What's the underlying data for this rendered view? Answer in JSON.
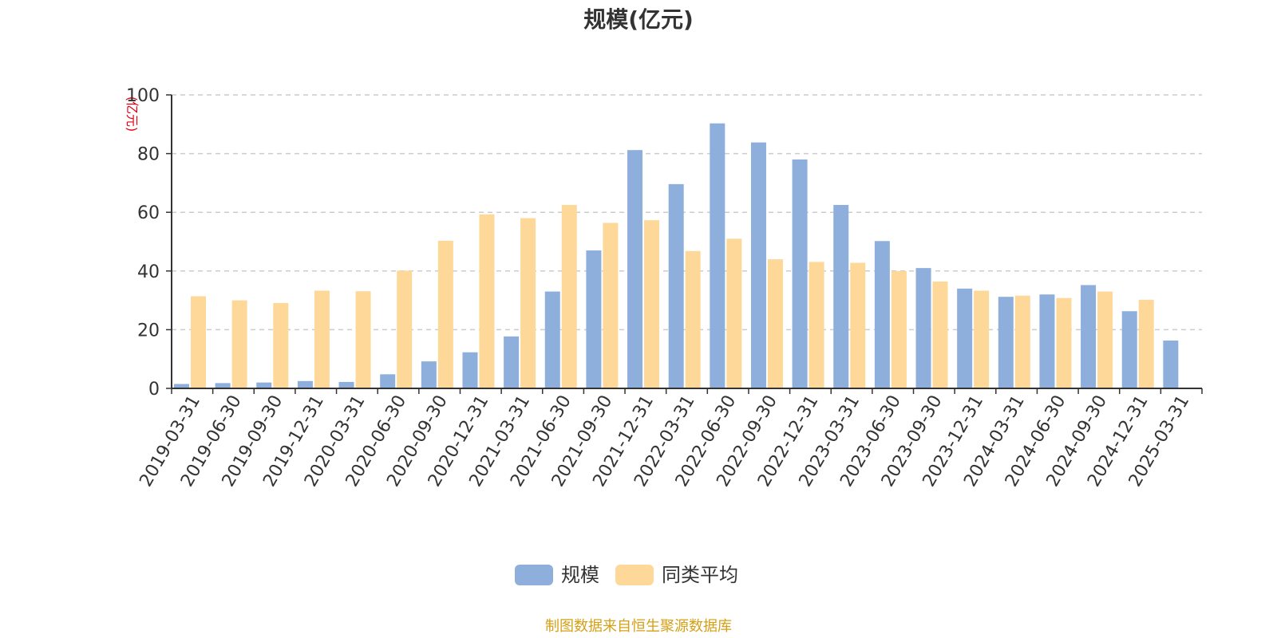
{
  "chart_data": {
    "type": "bar",
    "title": "规模(亿元)",
    "unit_label": "(亿元)",
    "ylim": [
      0,
      100
    ],
    "yticks": [
      0,
      20,
      40,
      60,
      80,
      100
    ],
    "grid": true,
    "legend_position": "bottom",
    "categories": [
      "2019-03-31",
      "2019-06-30",
      "2019-09-30",
      "2019-12-31",
      "2020-03-31",
      "2020-06-30",
      "2020-09-30",
      "2020-12-31",
      "2021-03-31",
      "2021-06-30",
      "2021-09-30",
      "2021-12-31",
      "2022-03-31",
      "2022-06-30",
      "2022-09-30",
      "2022-12-31",
      "2023-03-31",
      "2023-06-30",
      "2023-09-30",
      "2023-12-31",
      "2024-03-31",
      "2024-06-30",
      "2024-09-30",
      "2024-12-31",
      "2025-03-31"
    ],
    "series": [
      {
        "name": "规模",
        "color": "#8eaedb",
        "values": [
          1.5,
          1.8,
          2.0,
          2.5,
          2.2,
          4.8,
          9.2,
          12.3,
          17.7,
          33.0,
          47.0,
          81.2,
          69.6,
          90.3,
          83.8,
          78.0,
          62.5,
          50.2,
          41.0,
          34.0,
          31.2,
          32.0,
          35.2,
          26.3,
          16.3
        ]
      },
      {
        "name": "同类平均",
        "color": "#fdd898",
        "values": [
          31.4,
          30.0,
          29.1,
          33.3,
          33.1,
          40.1,
          50.3,
          59.3,
          58.0,
          62.5,
          56.4,
          57.3,
          46.8,
          51.0,
          44.0,
          43.1,
          42.8,
          40.0,
          36.4,
          33.3,
          31.6,
          30.8,
          33.0,
          30.2,
          null
        ]
      }
    ]
  },
  "colors": {
    "axis": "#333333",
    "grid": "#cccccc",
    "unit_label": "#e60012",
    "source": "#d4a017"
  },
  "source_note": "制图数据来自恒生聚源数据库"
}
